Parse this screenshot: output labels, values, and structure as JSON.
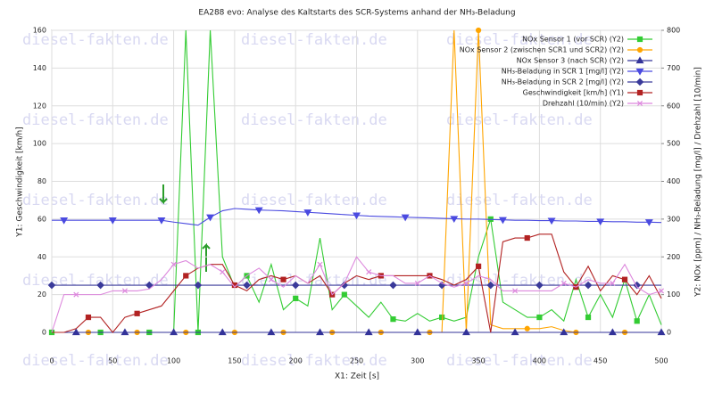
{
  "watermark": "diesel-fakten.de",
  "chart_data": {
    "type": "line",
    "title": "EA288 evo: Analyse des Kaltstarts des SCR-Systems anhand der NH₃-Beladung",
    "x_label": "X1: Zeit [s]",
    "y_label": "Y1: Geschwindigkeit [km/h]",
    "y2_label": "Y2: NOx [ppm] / NH₃-Beladung [mg/l] / Drehzahl [10/min]",
    "xlim": [
      0,
      500
    ],
    "xticks": [
      0,
      50,
      100,
      150,
      200,
      250,
      300,
      350,
      400,
      450,
      500
    ],
    "ylim": [
      0,
      160
    ],
    "yticks": [
      0,
      20,
      40,
      60,
      80,
      100,
      120,
      140,
      160
    ],
    "y2lim": [
      0,
      800
    ],
    "y2ticks": [
      0,
      100,
      200,
      300,
      400,
      500,
      600,
      700,
      800
    ],
    "grid": true,
    "legend": "upper right",
    "x": [
      0,
      10,
      20,
      30,
      40,
      50,
      60,
      70,
      80,
      90,
      100,
      110,
      120,
      130,
      140,
      150,
      160,
      170,
      180,
      190,
      200,
      210,
      220,
      230,
      240,
      250,
      260,
      270,
      280,
      290,
      300,
      310,
      320,
      330,
      340,
      350,
      360,
      370,
      380,
      390,
      400,
      410,
      420,
      430,
      440,
      450,
      460,
      470,
      480,
      490,
      500
    ],
    "series": [
      {
        "name": "NOx Sensor 1 (vor SCR) (Y2)",
        "color": "#33cc33",
        "marker": "square",
        "axis": "y2",
        "values": [
          0,
          0,
          0,
          0,
          0,
          0,
          0,
          0,
          0,
          0,
          0,
          800,
          0,
          800,
          200,
          120,
          150,
          80,
          180,
          60,
          90,
          70,
          250,
          60,
          100,
          70,
          40,
          80,
          35,
          30,
          50,
          30,
          40,
          30,
          40,
          200,
          300,
          80,
          60,
          40,
          40,
          60,
          30,
          140,
          40,
          100,
          40,
          140,
          30,
          100,
          20
        ]
      },
      {
        "name": "NOx Sensor 2 (zwischen SCR1 und SCR2) (Y2)",
        "color": "#ffa500",
        "marker": "circle",
        "axis": "y2",
        "values": [
          0,
          0,
          0,
          0,
          0,
          0,
          0,
          0,
          0,
          0,
          0,
          0,
          0,
          0,
          0,
          0,
          0,
          0,
          0,
          0,
          0,
          0,
          0,
          0,
          0,
          0,
          0,
          0,
          0,
          0,
          0,
          0,
          0,
          800,
          0,
          800,
          20,
          10,
          10,
          10,
          10,
          15,
          5,
          0,
          0,
          0,
          0,
          0,
          0,
          0,
          0
        ]
      },
      {
        "name": "NOx Sensor 3 (nach SCR) (Y2)",
        "color": "#333399",
        "marker": "triangle-up",
        "axis": "y2",
        "values": [
          0,
          0,
          0,
          0,
          0,
          0,
          0,
          0,
          0,
          0,
          0,
          0,
          0,
          0,
          0,
          0,
          0,
          0,
          0,
          0,
          0,
          0,
          0,
          0,
          0,
          0,
          0,
          0,
          0,
          0,
          0,
          0,
          0,
          0,
          0,
          0,
          0,
          0,
          0,
          0,
          0,
          0,
          0,
          0,
          0,
          0,
          0,
          0,
          0,
          0,
          0
        ]
      },
      {
        "name": "NH₃-Beladung in SCR 1 [mg/l] (Y2)",
        "color": "#4a4ae0",
        "marker": "triangle-down",
        "axis": "y2",
        "values": [
          297,
          297,
          297,
          297,
          297,
          297,
          297,
          297,
          297,
          297,
          292,
          288,
          284,
          305,
          322,
          328,
          326,
          324,
          323,
          322,
          320,
          318,
          316,
          314,
          312,
          310,
          308,
          307,
          306,
          305,
          304,
          303,
          302,
          301,
          300,
          300,
          299,
          298,
          297,
          297,
          296,
          296,
          295,
          295,
          294,
          294,
          293,
          293,
          292,
          292,
          291
        ]
      },
      {
        "name": "NH₃-Beladung in SCR 2 [mg/l] (Y2)",
        "color": "#3a3a9a",
        "marker": "diamond",
        "axis": "y2",
        "values": [
          125,
          125,
          125,
          125,
          125,
          125,
          125,
          125,
          125,
          125,
          125,
          125,
          125,
          125,
          125,
          125,
          125,
          125,
          125,
          125,
          125,
          125,
          125,
          125,
          125,
          125,
          125,
          125,
          125,
          125,
          125,
          125,
          125,
          125,
          125,
          125,
          125,
          125,
          125,
          125,
          125,
          125,
          125,
          125,
          125,
          125,
          125,
          125,
          125,
          125,
          125
        ]
      },
      {
        "name": "Geschwindigkeit [km/h] (Y1)",
        "color": "#b22222",
        "marker": "square",
        "axis": "y",
        "values": [
          0,
          0,
          2,
          8,
          8,
          0,
          8,
          10,
          12,
          14,
          22,
          30,
          34,
          36,
          36,
          25,
          22,
          28,
          30,
          28,
          30,
          26,
          30,
          20,
          26,
          30,
          28,
          30,
          30,
          30,
          30,
          30,
          28,
          25,
          28,
          35,
          0,
          48,
          50,
          50,
          52,
          52,
          32,
          24,
          35,
          22,
          30,
          28,
          20,
          30,
          18
        ]
      },
      {
        "name": "Drehzahl (10/min) (Y2)",
        "color": "#dd88dd",
        "marker": "x",
        "axis": "y2",
        "values": [
          0,
          100,
          100,
          100,
          100,
          110,
          110,
          110,
          115,
          140,
          180,
          190,
          170,
          180,
          160,
          120,
          150,
          170,
          140,
          120,
          150,
          130,
          180,
          100,
          130,
          200,
          160,
          150,
          150,
          130,
          130,
          150,
          130,
          120,
          130,
          150,
          140,
          110,
          110,
          110,
          110,
          110,
          130,
          120,
          140,
          130,
          130,
          180,
          120,
          100,
          110
        ]
      }
    ]
  }
}
